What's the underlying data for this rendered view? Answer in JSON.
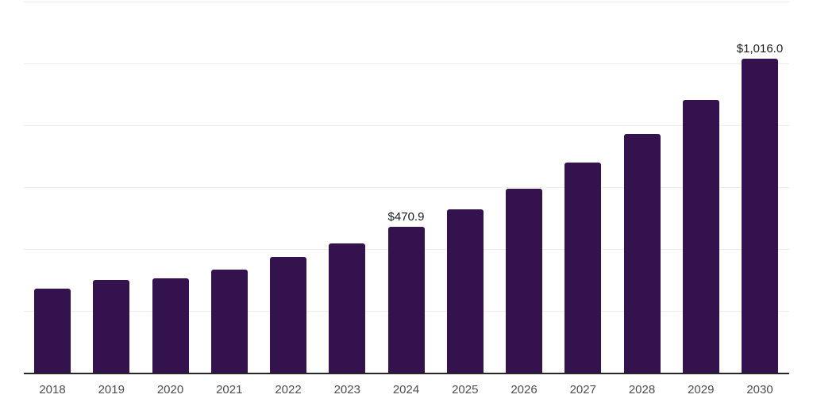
{
  "chart_data": {
    "type": "bar",
    "categories": [
      "2018",
      "2019",
      "2020",
      "2021",
      "2022",
      "2023",
      "2024",
      "2025",
      "2026",
      "2027",
      "2028",
      "2029",
      "2030"
    ],
    "values": [
      273,
      299,
      304,
      334,
      374,
      419,
      470.9,
      528,
      594,
      679,
      772,
      882,
      1016
    ],
    "labels": [
      "",
      "",
      "",
      "",
      "",
      "",
      "$470.9",
      "",
      "",
      "",
      "",
      "",
      "$1,016.0"
    ],
    "title": "",
    "xlabel": "",
    "ylabel": "",
    "ylim": [
      0,
      1200
    ],
    "gridline_step": 200,
    "grid": true,
    "legend": false,
    "y_axis_labels_visible": false,
    "colors": {
      "bar": "#33124d",
      "gridline": "#ededed",
      "axis_line": "#262626",
      "tick_label": "#4d4d4d",
      "data_label": "#1a1a1a",
      "background": "#ffffff"
    }
  }
}
